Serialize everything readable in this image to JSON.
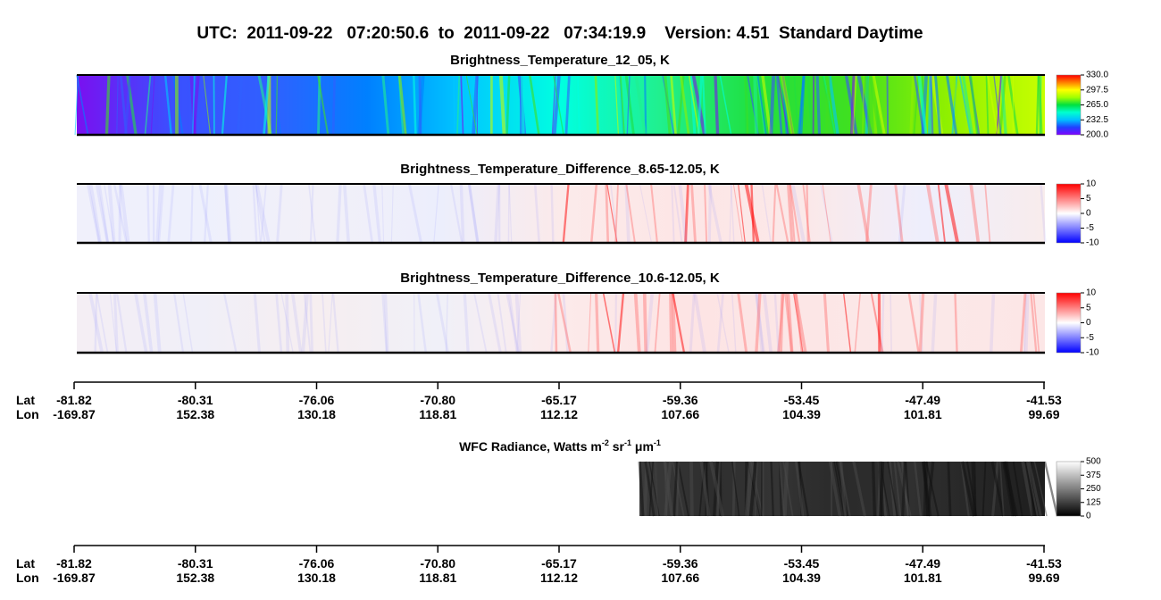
{
  "header": {
    "title": "UTC:  2011-09-22   07:20:50.6  to  2011-09-22   07:34:19.9    Version: 4.51  Standard Daytime"
  },
  "chart_data": [
    {
      "type": "heatmap",
      "title": "Brightness_Temperature_12_05, K",
      "colormap": [
        "#8000ff",
        "#2040ff",
        "#00c0ff",
        "#00ffd0",
        "#00e040",
        "#a0ff00",
        "#ffff00",
        "#ff8000",
        "#ff0000"
      ],
      "image_colors": [
        "#7a10f0",
        "#3a50ff",
        "#3060ff",
        "#0080ff",
        "#00c8ff",
        "#00ffe0",
        "#20f090",
        "#20e040",
        "#40e020",
        "#90f000",
        "#c8ff00"
      ],
      "clim": [
        200,
        330
      ],
      "cticks": [
        {
          "value": 200,
          "label": "200.0"
        },
        {
          "value": 232.5,
          "label": "232.5"
        },
        {
          "value": 265,
          "label": "265.0"
        },
        {
          "value": 297.5,
          "label": "297.5"
        },
        {
          "value": 330,
          "label": "330.0"
        }
      ]
    },
    {
      "type": "heatmap",
      "title": "Brightness_Temperature_Difference_8.65-12.05, K",
      "colormap": [
        "#0000ff",
        "#8080ff",
        "#ffffff",
        "#ff8080",
        "#ff0000"
      ],
      "image_colors": [
        "#f0f0fb",
        "#eef0fc",
        "#f2f0f8",
        "#eceefc",
        "#fbeaea",
        "#fde6e6",
        "#fbe8e8",
        "#eeeefc",
        "#f8ecec"
      ],
      "clim": [
        -10,
        10
      ],
      "cticks": [
        -10,
        -5,
        0,
        5,
        10
      ]
    },
    {
      "type": "heatmap",
      "title": "Brightness_Temperature_Difference_10.6-12.05, K",
      "colormap": [
        "#0000ff",
        "#8080ff",
        "#ffffff",
        "#ff8080",
        "#ff0000"
      ],
      "image_colors": [
        "#f4eef4",
        "#f0eff8",
        "#f6eef0",
        "#f0f0f8",
        "#fceaea",
        "#fde4e4",
        "#fce6e6",
        "#fbe8e8",
        "#fce6e6"
      ],
      "clim": [
        -10,
        10
      ],
      "cticks": [
        -10,
        -5,
        0,
        5,
        10
      ]
    },
    {
      "type": "grayscale",
      "title_parts": [
        "WFC Radiance, Watts m",
        "-2",
        " sr",
        "-1",
        " μm",
        "-1"
      ],
      "colormap": [
        "#000000",
        "#ffffff"
      ],
      "image_colors": [
        "#3a3a3a",
        "#2e2e2e",
        "#343434",
        "#2a2a2a",
        "#303030",
        "#262626",
        "#1e1e1e"
      ],
      "clim": [
        0,
        500
      ],
      "cticks": [
        0,
        125,
        250,
        375,
        500
      ]
    }
  ],
  "axis": {
    "lat_label": "Lat",
    "lon_label": "Lon",
    "lat": [
      "-81.82",
      "-80.31",
      "-76.06",
      "-70.80",
      "-65.17",
      "-59.36",
      "-53.45",
      "-47.49",
      "-41.53"
    ],
    "lon": [
      "-169.87",
      "152.38",
      "130.18",
      "118.81",
      "112.12",
      "107.66",
      "104.39",
      "101.81",
      "99.69"
    ]
  }
}
